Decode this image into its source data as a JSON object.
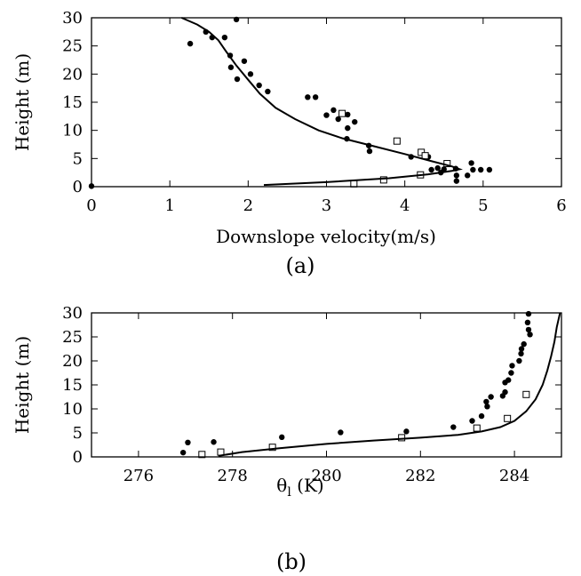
{
  "chart_data": [
    {
      "type": "scatter",
      "caption": "(a)",
      "xlabel": "Downslope velocity(m/s)",
      "ylabel": "Height (m)",
      "xlim": [
        0,
        6
      ],
      "ylim": [
        0,
        30
      ],
      "xticks": [
        "0",
        "1",
        "2",
        "3",
        "4",
        "5",
        "6"
      ],
      "yticks": [
        "0",
        "5",
        "10",
        "15",
        "20",
        "25",
        "30"
      ],
      "grid": false,
      "series": [
        {
          "marker": "filled-circle",
          "points": [
            [
              1.85,
              29.7
            ],
            [
              1.46,
              27.5
            ],
            [
              1.54,
              26.5
            ],
            [
              1.7,
              26.5
            ],
            [
              1.26,
              25.4
            ],
            [
              1.77,
              23.3
            ],
            [
              1.95,
              22.3
            ],
            [
              1.78,
              21.2
            ],
            [
              2.03,
              20.0
            ],
            [
              1.86,
              19.1
            ],
            [
              2.14,
              18.0
            ],
            [
              2.25,
              16.9
            ],
            [
              2.76,
              15.9
            ],
            [
              2.86,
              15.9
            ],
            [
              3.27,
              12.8
            ],
            [
              3.09,
              13.6
            ],
            [
              3.0,
              12.7
            ],
            [
              3.15,
              12.0
            ],
            [
              3.36,
              11.5
            ],
            [
              3.27,
              10.4
            ],
            [
              3.26,
              8.5
            ],
            [
              3.54,
              7.3
            ],
            [
              3.55,
              6.3
            ],
            [
              4.08,
              5.3
            ],
            [
              4.3,
              5.3
            ],
            [
              4.85,
              4.2
            ],
            [
              4.42,
              3.3
            ],
            [
              4.46,
              2.5
            ],
            [
              4.34,
              3.0
            ],
            [
              4.5,
              3.1
            ],
            [
              4.65,
              3.2
            ],
            [
              4.87,
              3.0
            ],
            [
              4.97,
              3.0
            ],
            [
              5.08,
              3.0
            ],
            [
              4.66,
              2.0
            ],
            [
              4.8,
              2.0
            ],
            [
              4.66,
              1.0
            ],
            [
              0.0,
              0.1
            ]
          ]
        },
        {
          "marker": "open-square",
          "points": [
            [
              3.2,
              13.0
            ],
            [
              3.9,
              8.1
            ],
            [
              4.21,
              6.1
            ],
            [
              4.26,
              5.5
            ],
            [
              4.54,
              4.1
            ],
            [
              4.2,
              2.1
            ],
            [
              3.73,
              1.2
            ],
            [
              3.35,
              0.5
            ]
          ]
        },
        {
          "marker": "line",
          "points": [
            [
              2.2,
              0.3
            ],
            [
              3.0,
              0.8
            ],
            [
              3.8,
              1.5
            ],
            [
              4.3,
              2.2
            ],
            [
              4.6,
              2.8
            ],
            [
              4.7,
              3.1
            ],
            [
              4.6,
              3.6
            ],
            [
              4.35,
              4.5
            ],
            [
              4.0,
              5.8
            ],
            [
              3.6,
              7.2
            ],
            [
              3.2,
              8.6
            ],
            [
              2.9,
              10.0
            ],
            [
              2.6,
              12.0
            ],
            [
              2.35,
              14.0
            ],
            [
              2.15,
              16.5
            ],
            [
              2.0,
              19.0
            ],
            [
              1.85,
              21.5
            ],
            [
              1.72,
              24.0
            ],
            [
              1.62,
              26.0
            ],
            [
              1.5,
              27.5
            ],
            [
              1.35,
              28.8
            ],
            [
              1.15,
              30.0
            ]
          ]
        }
      ]
    },
    {
      "type": "scatter",
      "caption": "(b)",
      "xlabel": "θ",
      "xlabel_sub": "l",
      "xlabel_unit": " (K)",
      "ylabel": "Height (m)",
      "xlim": [
        275,
        285
      ],
      "ylim": [
        0,
        30
      ],
      "xticks": [
        "276",
        "278",
        "280",
        "282",
        "284"
      ],
      "xtick_values": [
        276,
        278,
        280,
        282,
        284
      ],
      "yticks": [
        "0",
        "5",
        "10",
        "15",
        "20",
        "25",
        "30"
      ],
      "grid": false,
      "series": [
        {
          "marker": "filled-circle",
          "points": [
            [
              284.3,
              29.8
            ],
            [
              284.28,
              28.0
            ],
            [
              284.3,
              26.5
            ],
            [
              284.33,
              25.5
            ],
            [
              284.2,
              23.5
            ],
            [
              284.15,
              22.5
            ],
            [
              284.14,
              21.5
            ],
            [
              284.1,
              20.0
            ],
            [
              283.95,
              19.0
            ],
            [
              283.93,
              17.5
            ],
            [
              283.87,
              16.0
            ],
            [
              283.8,
              15.5
            ],
            [
              283.8,
              13.5
            ],
            [
              283.75,
              12.7
            ],
            [
              283.5,
              12.5
            ],
            [
              283.4,
              11.5
            ],
            [
              283.42,
              10.5
            ],
            [
              283.3,
              8.5
            ],
            [
              283.1,
              7.5
            ],
            [
              282.7,
              6.2
            ],
            [
              280.3,
              5.1
            ],
            [
              281.7,
              5.3
            ],
            [
              279.05,
              4.1
            ],
            [
              277.05,
              3.0
            ],
            [
              277.6,
              3.1
            ],
            [
              276.95,
              0.9
            ]
          ]
        },
        {
          "marker": "open-square",
          "points": [
            [
              284.25,
              13.0
            ],
            [
              283.85,
              8.0
            ],
            [
              283.2,
              6.0
            ],
            [
              281.6,
              4.0
            ],
            [
              278.85,
              2.0
            ],
            [
              277.75,
              1.0
            ],
            [
              277.35,
              0.5
            ]
          ]
        },
        {
          "marker": "line",
          "points": [
            [
              277.7,
              0.2
            ],
            [
              278.2,
              1.0
            ],
            [
              279.0,
              1.8
            ],
            [
              280.0,
              2.7
            ],
            [
              281.0,
              3.4
            ],
            [
              282.0,
              4.0
            ],
            [
              282.8,
              4.6
            ],
            [
              283.3,
              5.3
            ],
            [
              283.7,
              6.2
            ],
            [
              284.0,
              7.5
            ],
            [
              284.25,
              9.5
            ],
            [
              284.45,
              12.0
            ],
            [
              284.6,
              15.0
            ],
            [
              284.7,
              18.0
            ],
            [
              284.78,
              21.0
            ],
            [
              284.85,
              24.0
            ],
            [
              284.9,
              27.0
            ],
            [
              284.97,
              30.0
            ]
          ]
        }
      ]
    }
  ]
}
